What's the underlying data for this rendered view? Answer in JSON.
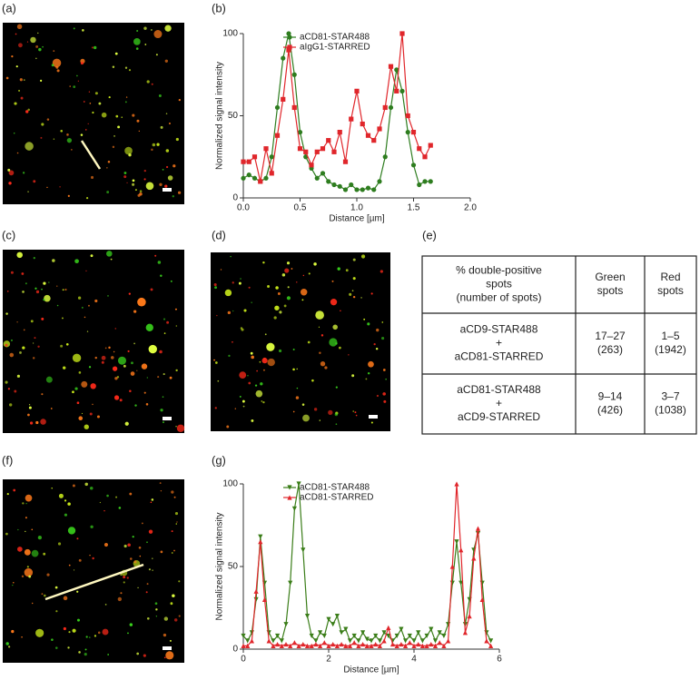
{
  "panels": [
    "(a)",
    "(b)",
    "(c)",
    "(d)",
    "(e)",
    "(f)",
    "(g)"
  ],
  "chart_data": [
    {
      "type": "line",
      "xlabel": "Distance [µm]",
      "ylabel": "Normalized signal intensity",
      "x": [
        0,
        0.05,
        0.1,
        0.15,
        0.2,
        0.25,
        0.3,
        0.35,
        0.4,
        0.45,
        0.5,
        0.55,
        0.6,
        0.65,
        0.7,
        0.75,
        0.8,
        0.85,
        0.9,
        0.95,
        1.0,
        1.05,
        1.1,
        1.15,
        1.2,
        1.25,
        1.3,
        1.35,
        1.4,
        1.45,
        1.5,
        1.55,
        1.6,
        1.65
      ],
      "series": [
        {
          "name": "aCD81-STAR488",
          "color": "#2e7d1f",
          "marker": "circle",
          "values": [
            12,
            14,
            12,
            10,
            12,
            25,
            55,
            85,
            100,
            75,
            40,
            25,
            18,
            12,
            15,
            10,
            8,
            7,
            5,
            8,
            5,
            5,
            6,
            5,
            10,
            25,
            55,
            78,
            65,
            40,
            20,
            8,
            10,
            10
          ]
        },
        {
          "name": "aIgG1-STARRED",
          "color": "#e0262b",
          "marker": "square",
          "values": [
            22,
            22,
            25,
            10,
            30,
            15,
            38,
            60,
            90,
            55,
            30,
            28,
            20,
            28,
            30,
            35,
            28,
            40,
            22,
            48,
            65,
            45,
            38,
            35,
            42,
            55,
            80,
            65,
            100,
            50,
            40,
            30,
            25,
            32
          ]
        }
      ],
      "xlim": [
        0,
        2
      ],
      "xticks": [
        {
          "value": 0,
          "label": "0.0"
        },
        {
          "value": 0.5,
          "label": "0.5"
        },
        {
          "value": 1,
          "label": "1.0"
        },
        {
          "value": 1.5,
          "label": "1.5"
        },
        {
          "value": 2,
          "label": "2.0"
        }
      ],
      "ylim": [
        0,
        100
      ],
      "yticks": [
        0,
        50,
        100
      ],
      "grid": false
    },
    {
      "type": "line",
      "xlabel": "Distance [µm]",
      "ylabel": "Normalized signal intensity",
      "x": [
        0,
        0.1,
        0.2,
        0.3,
        0.4,
        0.5,
        0.6,
        0.7,
        0.8,
        0.9,
        1.0,
        1.1,
        1.2,
        1.3,
        1.4,
        1.5,
        1.6,
        1.7,
        1.8,
        1.9,
        2.0,
        2.1,
        2.2,
        2.3,
        2.4,
        2.5,
        2.6,
        2.7,
        2.8,
        2.9,
        3.0,
        3.1,
        3.2,
        3.3,
        3.4,
        3.5,
        3.6,
        3.7,
        3.8,
        3.9,
        4.0,
        4.1,
        4.2,
        4.3,
        4.4,
        4.5,
        4.6,
        4.7,
        4.8,
        4.9,
        5.0,
        5.1,
        5.2,
        5.3,
        5.4,
        5.5,
        5.6,
        5.7,
        5.8
      ],
      "series": [
        {
          "name": "aCD81-STAR488",
          "color": "#3a7d18",
          "marker": "tri-down",
          "values": [
            8,
            5,
            10,
            30,
            68,
            40,
            10,
            5,
            8,
            5,
            15,
            40,
            85,
            100,
            60,
            20,
            8,
            5,
            10,
            8,
            18,
            15,
            20,
            10,
            12,
            5,
            8,
            5,
            10,
            6,
            5,
            8,
            5,
            10,
            8,
            5,
            8,
            12,
            5,
            8,
            5,
            10,
            5,
            8,
            12,
            5,
            10,
            8,
            15,
            40,
            65,
            40,
            15,
            30,
            60,
            70,
            40,
            10,
            5
          ]
        },
        {
          "name": "aCD81-STARRED",
          "color": "#e0262b",
          "marker": "tri-up",
          "values": [
            2,
            2,
            5,
            35,
            65,
            30,
            5,
            2,
            3,
            2,
            3,
            2,
            4,
            2,
            3,
            2,
            2,
            3,
            2,
            4,
            2,
            3,
            2,
            3,
            2,
            2,
            4,
            2,
            3,
            2,
            2,
            3,
            2,
            5,
            13,
            3,
            2,
            3,
            2,
            4,
            2,
            3,
            2,
            2,
            3,
            2,
            4,
            2,
            5,
            50,
            100,
            60,
            10,
            20,
            55,
            73,
            30,
            5,
            2
          ]
        }
      ],
      "xlim": [
        0,
        6
      ],
      "xticks": [
        0,
        2,
        4,
        6
      ],
      "ylim": [
        0,
        100
      ],
      "yticks": [
        0,
        50,
        100
      ],
      "grid": false
    }
  ],
  "table": {
    "header": [
      [
        "% double-positive",
        "spots",
        "(number of spots)"
      ],
      [
        "Green",
        "spots"
      ],
      [
        "Red",
        "spots"
      ]
    ],
    "rows": [
      [
        [
          "aCD9-STAR488",
          "+",
          "aCD81-STARRED"
        ],
        [
          "17–27",
          "(263)"
        ],
        [
          "1–5",
          "(1942)"
        ]
      ],
      [
        [
          "aCD81-STAR488",
          "+",
          "aCD9-STARRED"
        ],
        [
          "9–14",
          "(426)"
        ],
        [
          "3–7",
          "(1038)"
        ]
      ]
    ]
  }
}
